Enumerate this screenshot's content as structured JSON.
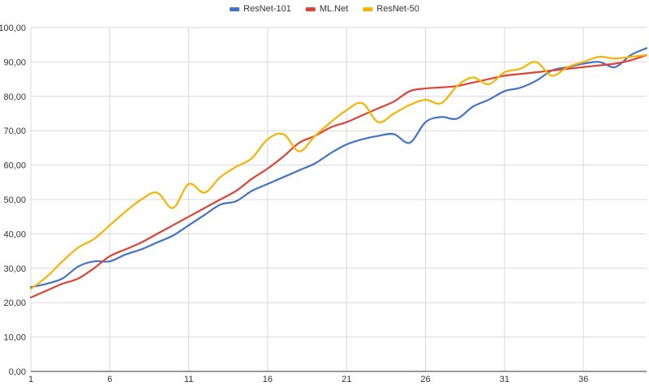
{
  "chart_data": {
    "type": "line",
    "title": "",
    "xlabel": "",
    "ylabel": "",
    "xlim": [
      1,
      40
    ],
    "ylim": [
      0,
      100
    ],
    "x_ticks": [
      1,
      6,
      11,
      16,
      21,
      26,
      31,
      36
    ],
    "x_tick_labels": [
      "1",
      "6",
      "11",
      "16",
      "21",
      "26",
      "31",
      "36"
    ],
    "y_ticks": [
      0,
      10,
      20,
      30,
      40,
      50,
      60,
      70,
      80,
      90,
      100
    ],
    "y_tick_labels": [
      "0,00",
      "10,00",
      "20,00",
      "30,00",
      "40,00",
      "50,00",
      "60,00",
      "70,00",
      "80,00",
      "90,00",
      "100,00"
    ],
    "grid": true,
    "legend_position": "top-center",
    "x": [
      1,
      2,
      3,
      4,
      5,
      6,
      7,
      8,
      9,
      10,
      11,
      12,
      13,
      14,
      15,
      16,
      17,
      18,
      19,
      20,
      21,
      22,
      23,
      24,
      25,
      26,
      27,
      28,
      29,
      30,
      31,
      32,
      33,
      34,
      35,
      36,
      37,
      38,
      39,
      40
    ],
    "series": [
      {
        "name": "ResNet-101",
        "color": "#4472C4",
        "values": [
          24.5,
          25.5,
          27,
          30.5,
          32,
          32,
          34,
          35.5,
          37.5,
          39.5,
          42.5,
          45.5,
          48.5,
          49.5,
          52.5,
          54.5,
          56.5,
          58.5,
          60.5,
          63.5,
          66,
          67.5,
          68.5,
          69,
          66.5,
          72.5,
          74,
          73.5,
          77,
          79,
          81.5,
          82.5,
          84.5,
          87.5,
          88.5,
          89.5,
          90,
          88.5,
          92,
          94
        ]
      },
      {
        "name": "ML.Net",
        "color": "#DB4437",
        "values": [
          21.5,
          23.5,
          25.5,
          27,
          30,
          33.5,
          35.5,
          37.5,
          40,
          42.5,
          45,
          47.5,
          50,
          52.5,
          56,
          59,
          62.5,
          66.5,
          68.5,
          71,
          72.5,
          74.5,
          76.5,
          78.5,
          81.5,
          82.3,
          82.6,
          83,
          84,
          85,
          86,
          86.5,
          87,
          87.5,
          88,
          88.5,
          89,
          89.5,
          90.5,
          92
        ]
      },
      {
        "name": "ResNet-50",
        "color": "#F4B400",
        "values": [
          24,
          27.5,
          32,
          36,
          38.5,
          42.5,
          46.5,
          50,
          52,
          47.5,
          54.5,
          52,
          56.5,
          59.5,
          62,
          67.5,
          69,
          64,
          68.5,
          72.5,
          76,
          78,
          72.5,
          75,
          77.5,
          79,
          78,
          83,
          85.5,
          83.5,
          87,
          88,
          90,
          86,
          88.5,
          90,
          91.5,
          91,
          91.5,
          92
        ]
      }
    ]
  }
}
